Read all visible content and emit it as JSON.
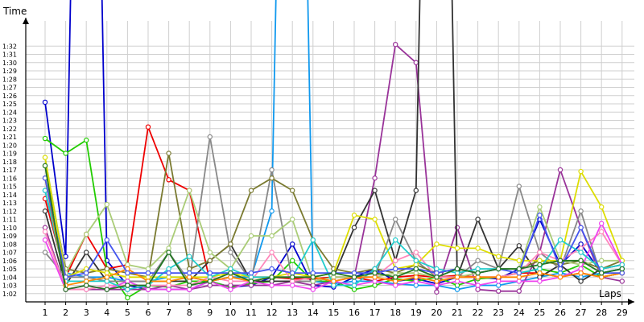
{
  "chart_data": {
    "type": "line",
    "xlabel": "Laps",
    "ylabel": "Time",
    "x": [
      1,
      2,
      3,
      4,
      5,
      6,
      7,
      8,
      9,
      10,
      11,
      12,
      13,
      14,
      15,
      16,
      17,
      18,
      19,
      20,
      21,
      22,
      23,
      24,
      25,
      26,
      27,
      28,
      29
    ],
    "y_ticks": [
      "1:02",
      "1:03",
      "1:04",
      "1:05",
      "1:06",
      "1:07",
      "1:08",
      "1:09",
      "1:10",
      "1:11",
      "1:12",
      "1:13",
      "1:14",
      "1:15",
      "1:16",
      "1:17",
      "1:18",
      "1:19",
      "1:20",
      "1:21",
      "1:22",
      "1:23",
      "1:24",
      "1:25",
      "1:26",
      "1:27",
      "1:28",
      "1:29",
      "1:30",
      "1:31",
      "1:32"
    ],
    "ylim_seconds": [
      60,
      95
    ],
    "grid": true,
    "series": [
      {
        "color": "#0000cc",
        "values": [
          85.2,
          66.5,
          200,
          66,
          63,
          62.5,
          62.5,
          62.5,
          63.5,
          62.8,
          63,
          64,
          68,
          63,
          62.8,
          64,
          65,
          63.5,
          63.8,
          63.2,
          64,
          64,
          63.8,
          65,
          71,
          65.5,
          68,
          64.5,
          65
        ]
      },
      {
        "color": "#22cc00",
        "values": [
          80.8,
          79,
          80.6,
          65,
          61.5,
          63,
          62.8,
          63.5,
          63.5,
          62.8,
          63.2,
          63.5,
          66,
          63.5,
          63.5,
          62.5,
          63,
          63.8,
          63.5,
          64,
          63,
          63.8,
          64,
          64.5,
          65,
          64.5,
          65.5,
          64,
          64.5
        ]
      },
      {
        "color": "#ee0000",
        "values": [
          73.5,
          64,
          69.2,
          65,
          65.5,
          82.2,
          75.8,
          74.5,
          63.5,
          64,
          64,
          64,
          63.8,
          63.8,
          64,
          64,
          63.5,
          64,
          64.2,
          64,
          64.2,
          64,
          64,
          64.5,
          64.5,
          64,
          64.5,
          64,
          64.5
        ]
      },
      {
        "color": "#1199ee",
        "values": [
          74.5,
          64.5,
          64,
          64,
          63.5,
          63.5,
          64,
          64,
          63.5,
          64,
          64,
          72,
          200,
          63.5,
          63.2,
          63.5,
          63.5,
          63.2,
          63,
          63,
          62.5,
          63,
          63,
          63.5,
          64,
          64.5,
          64,
          64.5,
          65
        ]
      },
      {
        "color": "#993399",
        "values": [
          70,
          62.5,
          62.5,
          62.5,
          62.5,
          62.5,
          63,
          62.5,
          63,
          63,
          63,
          63,
          63.5,
          63,
          63.5,
          64,
          76,
          92.2,
          90,
          62.2,
          70,
          62.5,
          62.3,
          62.3,
          67,
          77,
          70,
          64,
          63.5
        ]
      },
      {
        "color": "#333333",
        "values": [
          72,
          63,
          67,
          63.5,
          63.5,
          63.5,
          63.5,
          63.5,
          66,
          68,
          63.5,
          63.5,
          63.5,
          63.5,
          64,
          70,
          74.5,
          66,
          74.5,
          200,
          64,
          71,
          65,
          67.8,
          64,
          65.5,
          63.5,
          65,
          65.5
        ]
      },
      {
        "color": "#888888",
        "values": [
          67,
          64,
          64,
          63.5,
          63.5,
          63.5,
          67,
          63.5,
          81,
          67,
          63.5,
          77,
          63.5,
          63.5,
          64,
          64,
          64,
          71,
          66,
          64,
          64,
          66,
          65,
          75,
          67,
          65,
          72,
          64,
          64.5
        ]
      },
      {
        "color": "#7a7a30",
        "values": [
          77.5,
          65,
          64.5,
          65,
          64.5,
          64,
          79,
          65,
          66,
          68,
          74.5,
          76,
          74.5,
          68.5,
          65,
          64.5,
          65,
          64.5,
          65.5,
          64.5,
          65,
          64.5,
          65,
          65,
          66,
          65.5,
          66,
          65,
          66
        ]
      },
      {
        "color": "#aacc77",
        "values": [
          78.5,
          64.5,
          69.2,
          72.8,
          65.5,
          65,
          67.5,
          74.5,
          67,
          65,
          69,
          69,
          71,
          63.5,
          64,
          64,
          64,
          64.5,
          64.5,
          64,
          64,
          64.5,
          65,
          65,
          72.5,
          66,
          65.5,
          66,
          66
        ]
      },
      {
        "color": "#dddd00",
        "values": [
          78.5,
          64,
          65,
          64.5,
          64,
          64,
          64,
          64,
          64,
          64.5,
          64,
          64,
          64.5,
          64,
          64.5,
          71.5,
          71,
          65,
          65.5,
          68,
          67.5,
          67.5,
          66.5,
          66,
          66,
          66,
          76.8,
          72.5,
          66
        ]
      },
      {
        "color": "#ff88bb",
        "values": [
          69.5,
          62.5,
          62.5,
          63,
          63,
          63,
          63,
          63,
          64,
          63.5,
          63.5,
          67,
          63.5,
          64,
          63.5,
          64,
          64,
          66,
          67,
          64,
          64,
          64,
          64,
          64.5,
          67,
          66,
          67.5,
          69.5,
          65.5
        ]
      },
      {
        "color": "#ee44ee",
        "values": [
          68.5,
          62.5,
          63,
          62.5,
          63.5,
          62.5,
          62.5,
          62.5,
          63.5,
          62.5,
          63.5,
          63,
          63,
          62.5,
          63.5,
          63,
          63.5,
          63,
          63.5,
          63,
          63.5,
          63,
          63.5,
          63.5,
          63.5,
          64,
          65,
          70.5,
          65.5
        ]
      },
      {
        "color": "#22cccc",
        "values": [
          74.5,
          63.5,
          63.5,
          63.5,
          62.5,
          63,
          65,
          66.5,
          64,
          65,
          64,
          64,
          64,
          68.5,
          63,
          63,
          65,
          68.5,
          66,
          65,
          64.5,
          65,
          65,
          64.5,
          65,
          68.5,
          67,
          65,
          65.5
        ]
      },
      {
        "color": "#ff8800",
        "values": [
          76,
          63,
          63.5,
          64,
          65,
          63.5,
          63.5,
          64,
          63.5,
          64,
          63.5,
          64,
          64,
          64,
          63.5,
          64,
          64,
          63.5,
          64,
          63.5,
          64,
          64,
          64,
          64,
          64.5,
          64,
          64.5,
          64,
          64.5
        ]
      },
      {
        "color": "#4455ee",
        "values": [
          76,
          64,
          64.5,
          68.5,
          64.5,
          64.5,
          64.5,
          64.5,
          64.5,
          64.5,
          64.5,
          65,
          64.5,
          64.5,
          64.5,
          64.5,
          64.5,
          65,
          65,
          64.5,
          65,
          64.5,
          65,
          64.5,
          71.5,
          65,
          70,
          64.5,
          64.5
        ]
      },
      {
        "color": "#227722",
        "values": [
          77.5,
          62.5,
          63,
          62.5,
          63,
          63,
          67,
          63,
          63.5,
          64.5,
          63.5,
          64,
          64,
          64,
          64.5,
          64,
          64.5,
          64,
          65,
          64,
          65,
          64.5,
          65,
          65,
          65.5,
          66,
          66,
          64.5,
          65
        ]
      }
    ]
  }
}
